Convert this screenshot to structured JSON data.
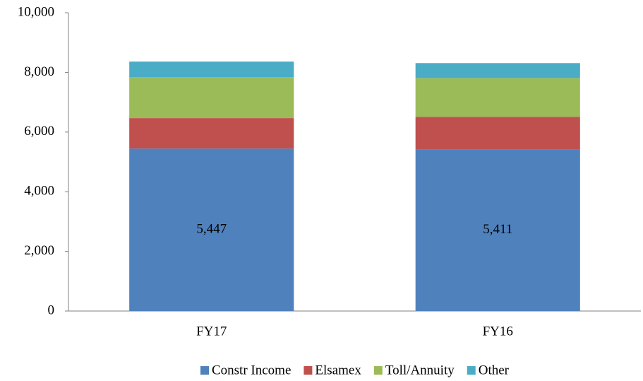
{
  "chart_data": {
    "type": "stacked_bar",
    "categories": [
      "FY17",
      "FY16"
    ],
    "series": [
      {
        "name": "Constr Income",
        "color": "#4f81bd",
        "values": [
          5447,
          5411
        ],
        "value_labels": [
          "5,447",
          "5,411"
        ]
      },
      {
        "name": "Elsamex",
        "color": "#c0504d",
        "values": [
          1020,
          1100
        ]
      },
      {
        "name": "Toll/Annuity",
        "color": "#9bbb59",
        "values": [
          1375,
          1300
        ]
      },
      {
        "name": "Other",
        "color": "#4bacc6",
        "values": [
          520,
          500
        ]
      }
    ],
    "ylim": [
      0,
      10000
    ],
    "yticks": [
      0,
      {
        "value": 2000,
        "label": "2,000"
      },
      {
        "value": 4000,
        "label": "4,000"
      },
      {
        "value": 6000,
        "label": "6,000"
      },
      {
        "value": 8000,
        "label": "8,000"
      },
      {
        "value": 10000,
        "label": "10,000"
      }
    ],
    "grid": false,
    "legend": "bottom"
  }
}
